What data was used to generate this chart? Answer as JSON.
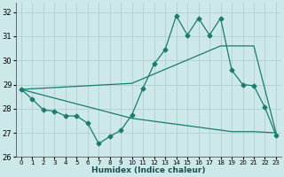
{
  "xlabel": "Humidex (Indice chaleur)",
  "background_color": "#cce8e8",
  "grid_color": "#aacccc",
  "line_color": "#1e7a6e",
  "xlim": [
    -0.5,
    23.5
  ],
  "ylim": [
    26,
    32.4
  ],
  "yticks": [
    26,
    27,
    28,
    29,
    30,
    31,
    32
  ],
  "xticks": [
    0,
    1,
    2,
    3,
    4,
    5,
    6,
    7,
    8,
    9,
    10,
    11,
    12,
    13,
    14,
    15,
    16,
    17,
    18,
    19,
    20,
    21,
    22,
    23
  ],
  "line_jagged_x": [
    0,
    1,
    2,
    3,
    4,
    5,
    6,
    7,
    8,
    9,
    10,
    11,
    12,
    13,
    14,
    15,
    16,
    17,
    18,
    19,
    20,
    21,
    22,
    23
  ],
  "line_jagged_y": [
    28.8,
    28.4,
    27.95,
    27.9,
    27.7,
    27.7,
    27.4,
    26.55,
    26.85,
    27.1,
    27.75,
    28.85,
    29.85,
    30.45,
    31.85,
    31.05,
    31.75,
    31.05,
    31.75,
    29.6,
    29.0,
    28.95,
    28.05,
    26.9
  ],
  "line_upper_x": [
    0,
    10,
    18,
    21,
    23
  ],
  "line_upper_y": [
    28.8,
    29.05,
    30.6,
    30.6,
    27.0
  ],
  "line_lower_x": [
    0,
    10,
    19,
    21,
    23
  ],
  "line_lower_y": [
    28.8,
    27.6,
    27.05,
    27.05,
    27.0
  ]
}
